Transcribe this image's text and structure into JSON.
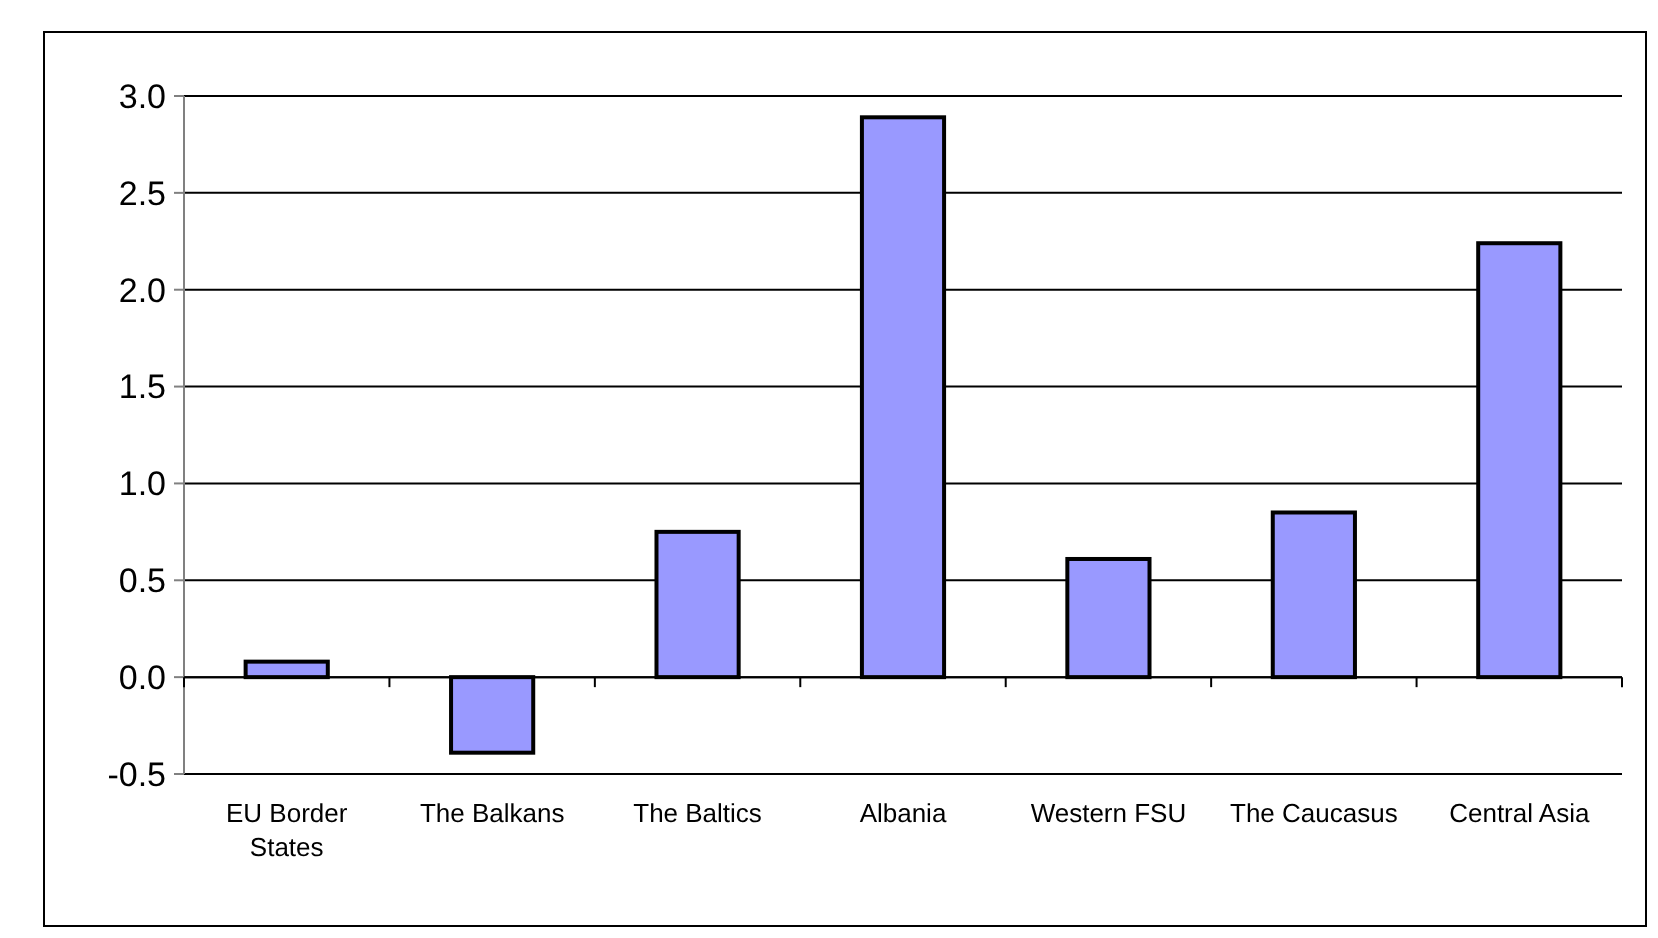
{
  "chart_data": {
    "type": "bar",
    "categories": [
      "EU Border States",
      "The Balkans",
      "The Baltics",
      "Albania",
      "Western FSU",
      "The Caucasus",
      "Central Asia"
    ],
    "values": [
      0.08,
      -0.39,
      0.75,
      2.89,
      0.61,
      0.85,
      2.24
    ],
    "color": "#9999ff",
    "ylim": [
      -0.5,
      3.0
    ],
    "yticks": [
      {
        "value": -0.5,
        "label": "-0.5"
      },
      {
        "value": 0,
        "label": "0.0"
      },
      {
        "value": 0.5,
        "label": "0.5"
      },
      {
        "value": 1,
        "label": "1.0"
      },
      {
        "value": 1.5,
        "label": "1.5"
      },
      {
        "value": 2,
        "label": "2.0"
      },
      {
        "value": 2.5,
        "label": "2.5"
      },
      {
        "value": 3,
        "label": "3.0"
      }
    ],
    "grid": "y"
  }
}
